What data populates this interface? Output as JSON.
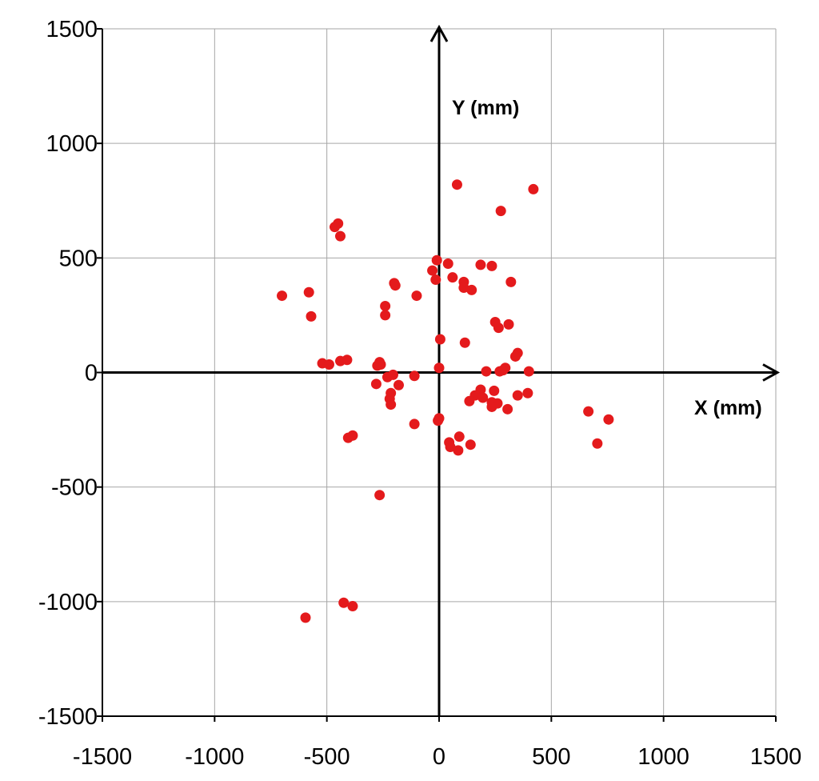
{
  "chart_data": {
    "type": "scatter",
    "title": "",
    "xlabel": "X (mm)",
    "ylabel": "Y (mm)",
    "xlim": [
      -1500,
      1500
    ],
    "ylim": [
      -1500,
      1500
    ],
    "x_ticks": [
      -1500,
      -1000,
      -500,
      0,
      500,
      1000,
      1500
    ],
    "y_ticks": [
      -1500,
      -1000,
      -500,
      0,
      500,
      1000,
      1500
    ],
    "grid": true,
    "marker_color": "#e41a1c",
    "series": [
      {
        "points": [
          [
            80,
            820
          ],
          [
            420,
            800
          ],
          [
            275,
            705
          ],
          [
            -450,
            650
          ],
          [
            -465,
            635
          ],
          [
            -440,
            595
          ],
          [
            -10,
            490
          ],
          [
            40,
            475
          ],
          [
            185,
            470
          ],
          [
            235,
            465
          ],
          [
            -30,
            445
          ],
          [
            -15,
            405
          ],
          [
            60,
            415
          ],
          [
            110,
            395
          ],
          [
            320,
            395
          ],
          [
            -200,
            390
          ],
          [
            -195,
            380
          ],
          [
            110,
            370
          ],
          [
            145,
            360
          ],
          [
            -580,
            350
          ],
          [
            -700,
            335
          ],
          [
            -100,
            335
          ],
          [
            -240,
            290
          ],
          [
            -240,
            250
          ],
          [
            -570,
            245
          ],
          [
            250,
            220
          ],
          [
            310,
            210
          ],
          [
            265,
            195
          ],
          [
            5,
            145
          ],
          [
            115,
            130
          ],
          [
            350,
            85
          ],
          [
            340,
            70
          ],
          [
            -410,
            55
          ],
          [
            -440,
            50
          ],
          [
            -520,
            40
          ],
          [
            -490,
            35
          ],
          [
            -265,
            45
          ],
          [
            -275,
            30
          ],
          [
            -260,
            35
          ],
          [
            0,
            20
          ],
          [
            295,
            20
          ],
          [
            285,
            10
          ],
          [
            270,
            5
          ],
          [
            210,
            5
          ],
          [
            400,
            5
          ],
          [
            -205,
            -10
          ],
          [
            -110,
            -15
          ],
          [
            -230,
            -20
          ],
          [
            -180,
            -55
          ],
          [
            -280,
            -50
          ],
          [
            185,
            -75
          ],
          [
            245,
            -80
          ],
          [
            395,
            -90
          ],
          [
            -215,
            -90
          ],
          [
            160,
            -100
          ],
          [
            195,
            -110
          ],
          [
            350,
            -100
          ],
          [
            -220,
            -115
          ],
          [
            135,
            -125
          ],
          [
            235,
            -130
          ],
          [
            260,
            -135
          ],
          [
            -215,
            -140
          ],
          [
            235,
            -150
          ],
          [
            305,
            -160
          ],
          [
            665,
            -170
          ],
          [
            755,
            -205
          ],
          [
            0,
            -200
          ],
          [
            -110,
            -225
          ],
          [
            -5,
            -210
          ],
          [
            -405,
            -285
          ],
          [
            -385,
            -275
          ],
          [
            90,
            -280
          ],
          [
            45,
            -305
          ],
          [
            140,
            -315
          ],
          [
            50,
            -325
          ],
          [
            85,
            -340
          ],
          [
            705,
            -310
          ],
          [
            -265,
            -535
          ],
          [
            -425,
            -1005
          ],
          [
            -385,
            -1020
          ],
          [
            -595,
            -1070
          ]
        ]
      }
    ]
  }
}
